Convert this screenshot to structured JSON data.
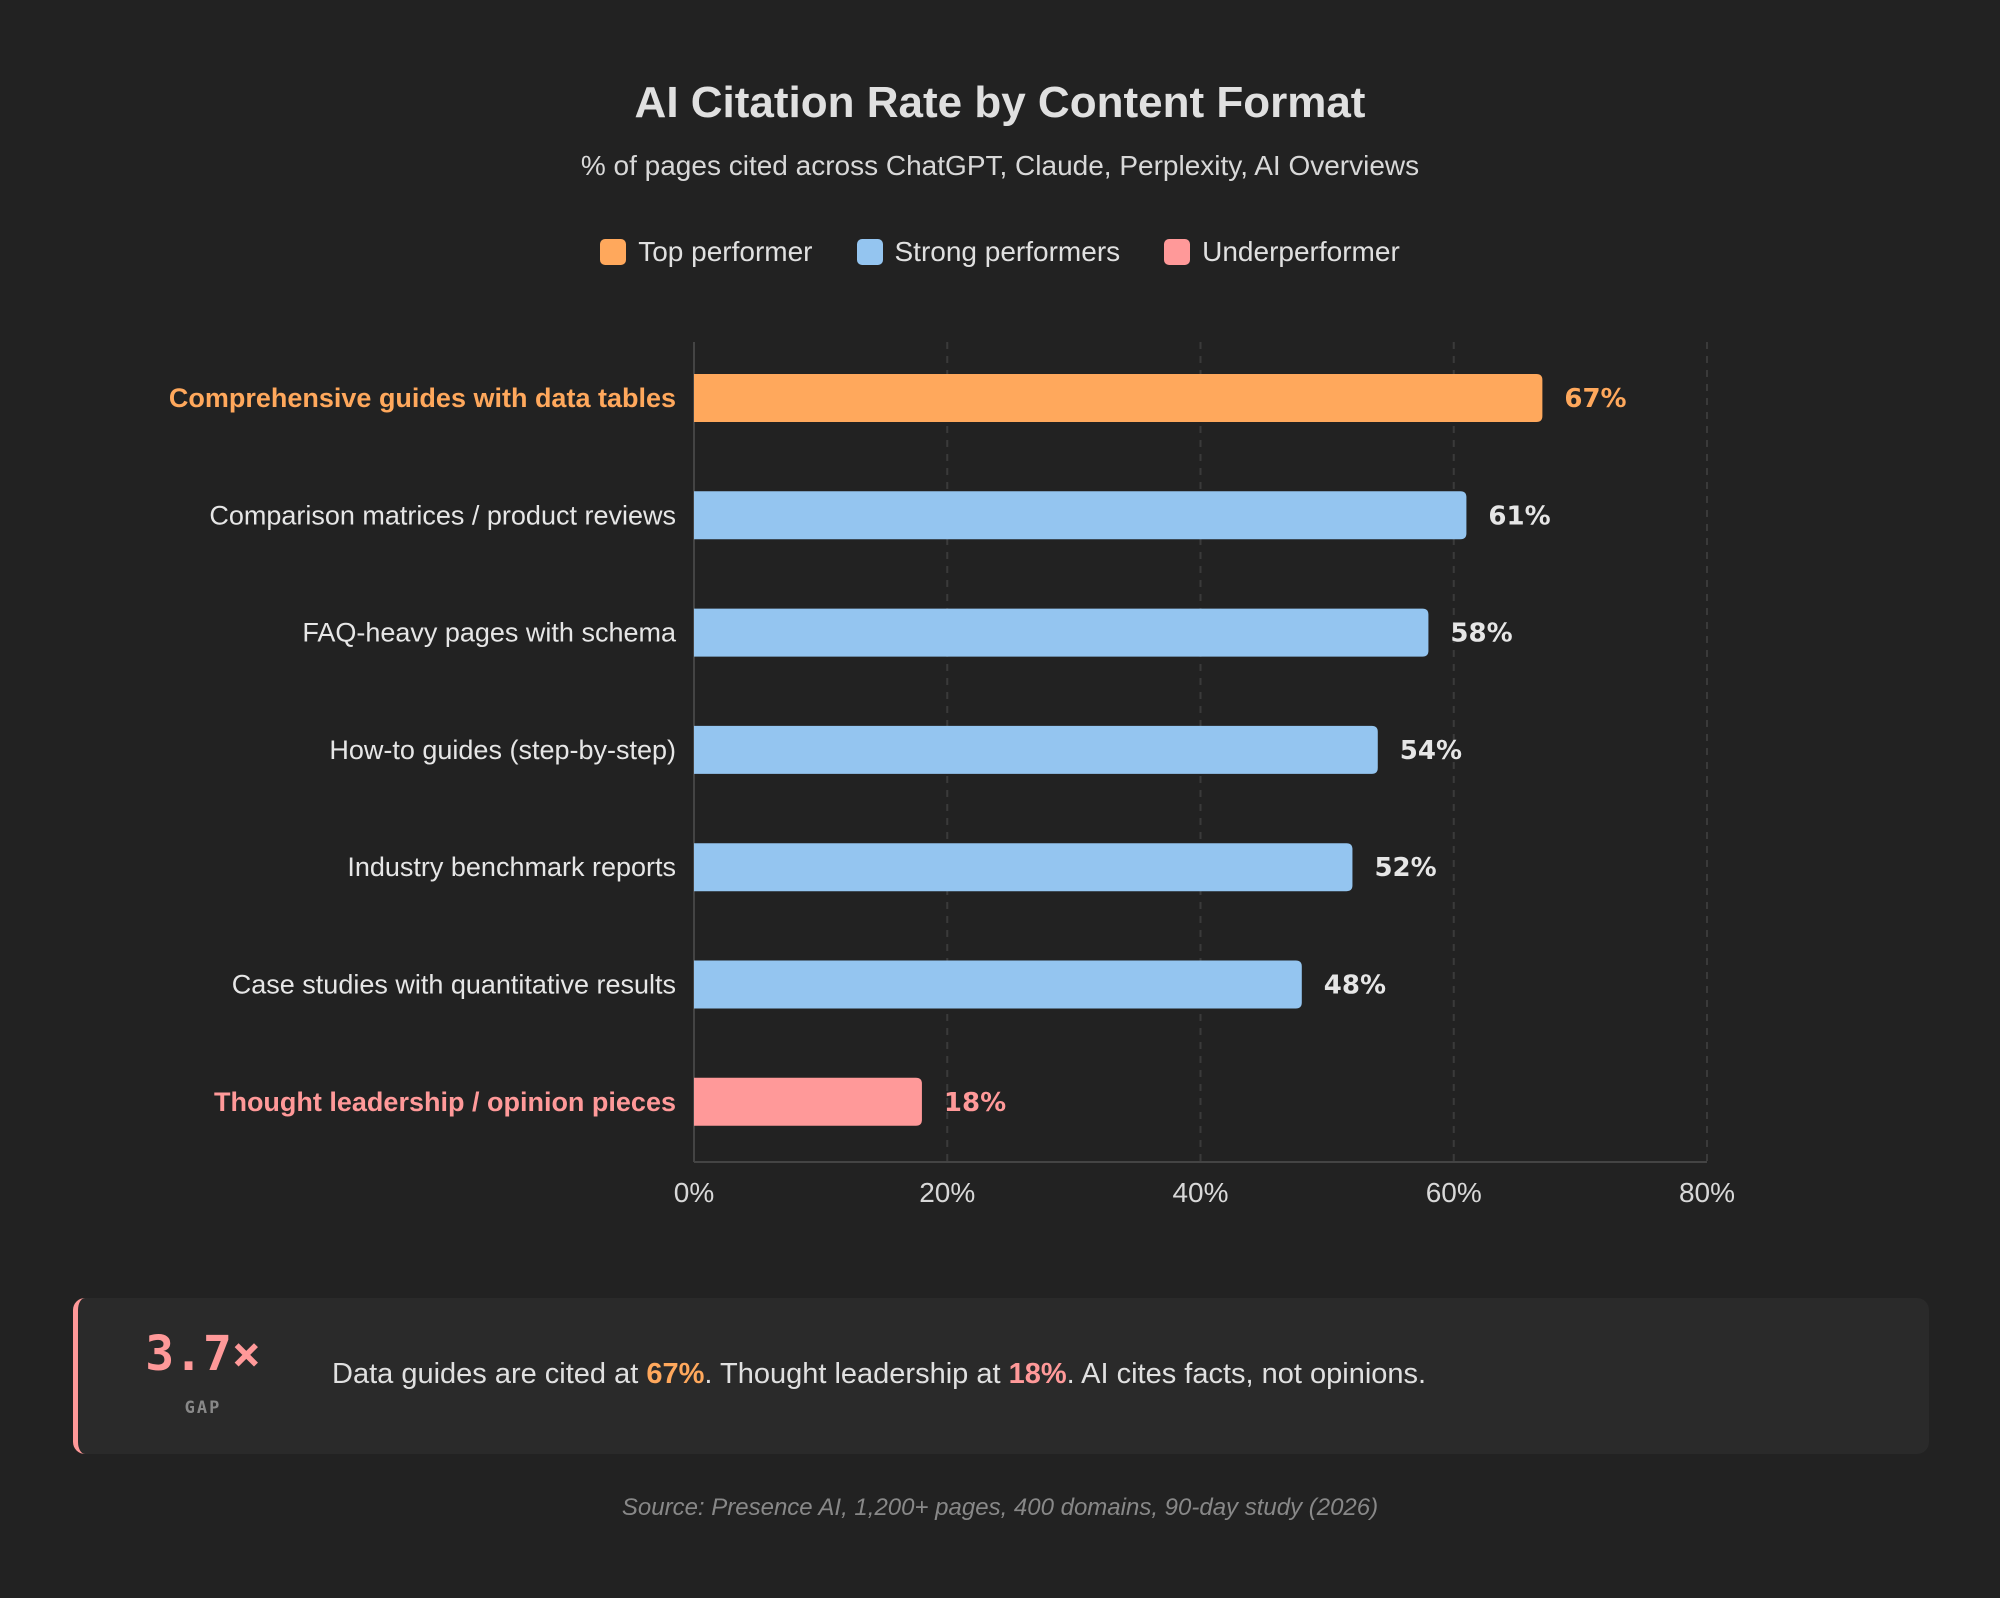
{
  "title": "AI Citation Rate by Content Format",
  "subtitle": "% of pages cited across ChatGPT, Claude, Perplexity, AI Overviews",
  "legend": [
    {
      "label": "Top performer",
      "color": "#ffa85c"
    },
    {
      "label": "Strong performers",
      "color": "#94c5f0"
    },
    {
      "label": "Underperformer",
      "color": "#ff9999"
    }
  ],
  "chart_data": {
    "type": "bar",
    "orientation": "horizontal",
    "categories": [
      "Comprehensive guides with data tables",
      "Comparison matrices / product reviews",
      "FAQ-heavy pages with schema",
      "How-to guides (step-by-step)",
      "Industry benchmark reports",
      "Case studies with quantitative results",
      "Thought leadership / opinion pieces"
    ],
    "values": [
      67,
      61,
      58,
      54,
      52,
      48,
      18
    ],
    "data_labels": [
      "67%",
      "61%",
      "58%",
      "54%",
      "52%",
      "48%",
      "18%"
    ],
    "groups": [
      "Top performer",
      "Strong performers",
      "Strong performers",
      "Strong performers",
      "Strong performers",
      "Strong performers",
      "Underperformer"
    ],
    "colors": [
      "#ffa85c",
      "#94c5f0",
      "#94c5f0",
      "#94c5f0",
      "#94c5f0",
      "#94c5f0",
      "#ff9999"
    ],
    "xlim": [
      0,
      80
    ],
    "xticks": [
      0,
      20,
      40,
      60,
      80
    ],
    "xtick_labels": [
      "0%",
      "20%",
      "40%",
      "60%",
      "80%"
    ],
    "grid": "vertical dashed",
    "legend_placement": "top-center"
  },
  "callout": {
    "big_number": "3.7×",
    "big_label": "GAP",
    "text_1": "Data guides are cited at ",
    "value_1": "67%",
    "text_2": ". Thought leadership at ",
    "value_2": "18%",
    "text_3": ". AI cites facts, not opinions."
  },
  "source": "Source: Presence AI, 1,200+ pages, 400 domains, 90-day study (2026)"
}
